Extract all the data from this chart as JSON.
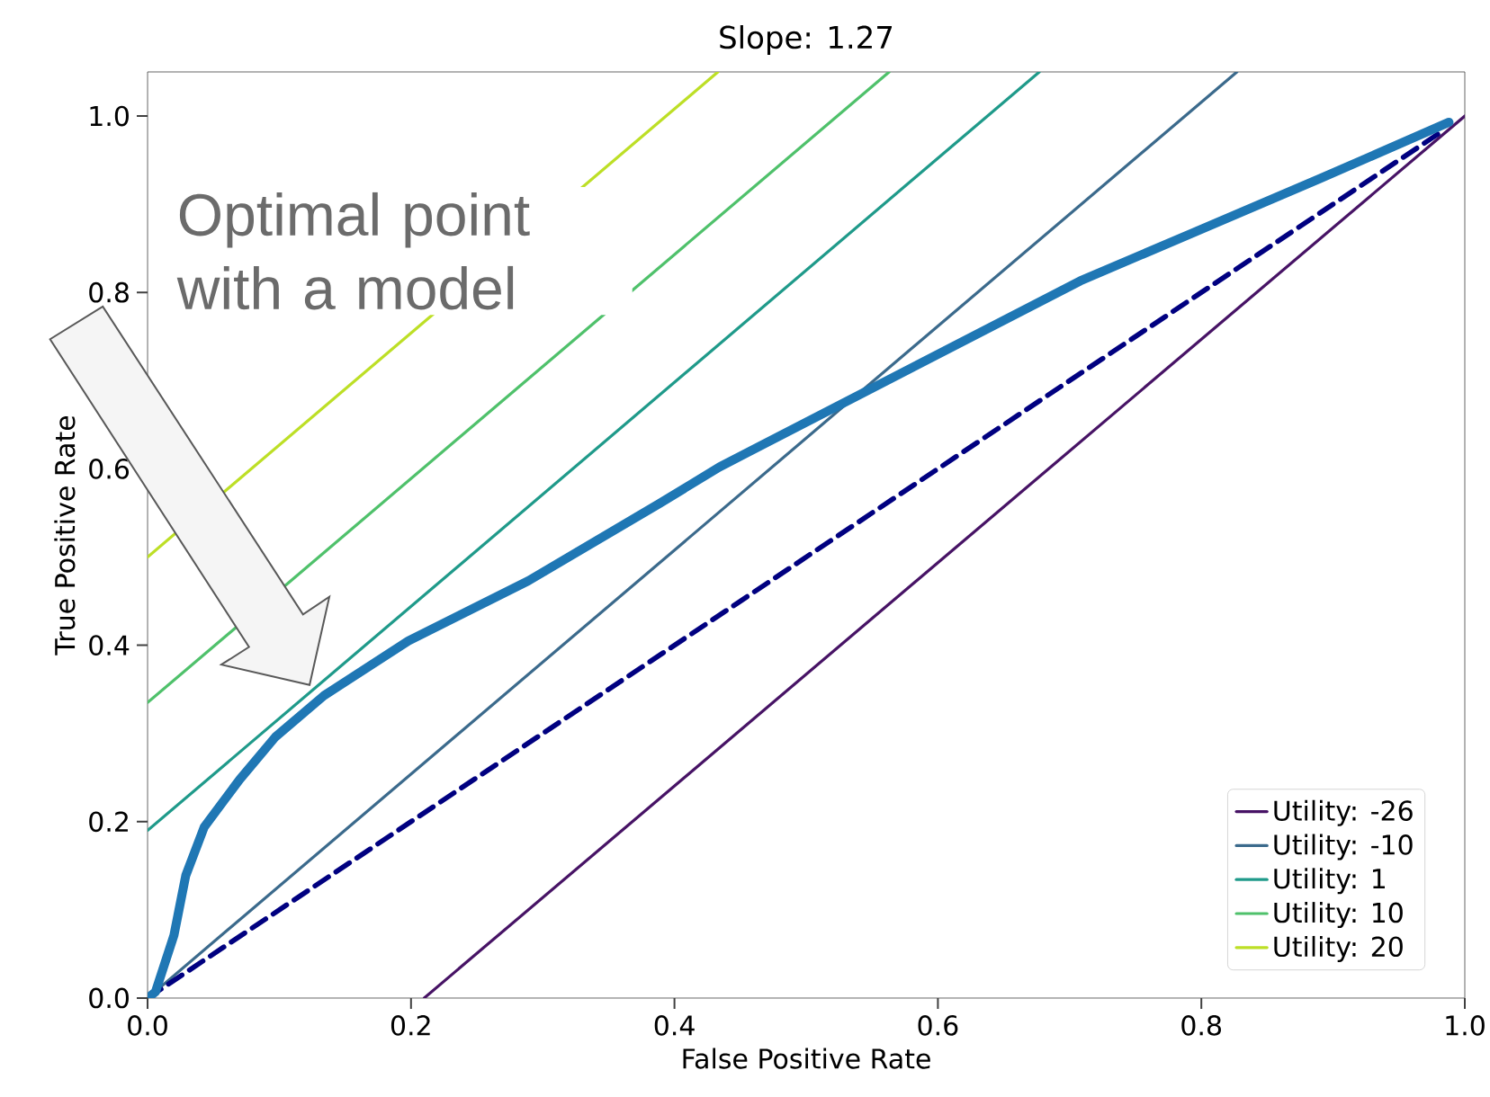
{
  "chart_data": {
    "type": "line",
    "title": "Slope: 1.27",
    "xlabel": "False Positive Rate",
    "ylabel": "True Positive Rate",
    "xlim": [
      0,
      1
    ],
    "ylim": [
      0,
      1.05
    ],
    "xticks": [
      {
        "value": 0,
        "label": "0.0"
      },
      0.2,
      0.4,
      0.6,
      0.8,
      {
        "value": 1,
        "label": "1.0"
      }
    ],
    "yticks": [
      {
        "value": 0,
        "label": "0.0"
      },
      0.2,
      0.4,
      0.6,
      0.8,
      {
        "value": 1,
        "label": "1.0"
      }
    ],
    "legend": "bottom right",
    "marker": "none",
    "series": [
      {
        "name": "Utility: -26",
        "color": "#471365",
        "x": [
          0.21,
          1.0
        ],
        "values": [
          0,
          1.0
        ]
      },
      {
        "name": "Utility: -10",
        "color": "#3b6a8c",
        "x": [
          0,
          0.827
        ],
        "values": [
          0,
          1.05
        ]
      },
      {
        "name": "Utility: 1",
        "color": "#1f9a8a",
        "x": [
          0,
          0.677
        ],
        "values": [
          0.19,
          1.05
        ]
      },
      {
        "name": "Utility: 10",
        "color": "#4fc16b",
        "x": [
          0,
          0.563
        ],
        "values": [
          0.335,
          1.05
        ]
      },
      {
        "name": "Utility: 20",
        "color": "#bddf26",
        "x": [
          0,
          0.433
        ],
        "values": [
          0.5,
          1.05
        ]
      },
      {
        "color": "#000080",
        "line_style": "dashed",
        "x": [
          0,
          0.98
        ],
        "values": [
          0,
          0.98
        ]
      },
      {
        "color": "#1f77b4",
        "x": [
          0,
          0.006,
          0.02,
          0.029,
          0.043,
          0.07,
          0.097,
          0.134,
          0.198,
          0.289,
          0.389,
          0.434,
          0.708,
          0.89,
          0.988
        ],
        "values": [
          0,
          0.007,
          0.071,
          0.139,
          0.194,
          0.248,
          0.296,
          0.343,
          0.405,
          0.473,
          0.561,
          0.602,
          0.813,
          0.929,
          0.993
        ]
      }
    ],
    "annotations": [
      "Optimal point with a model"
    ]
  }
}
